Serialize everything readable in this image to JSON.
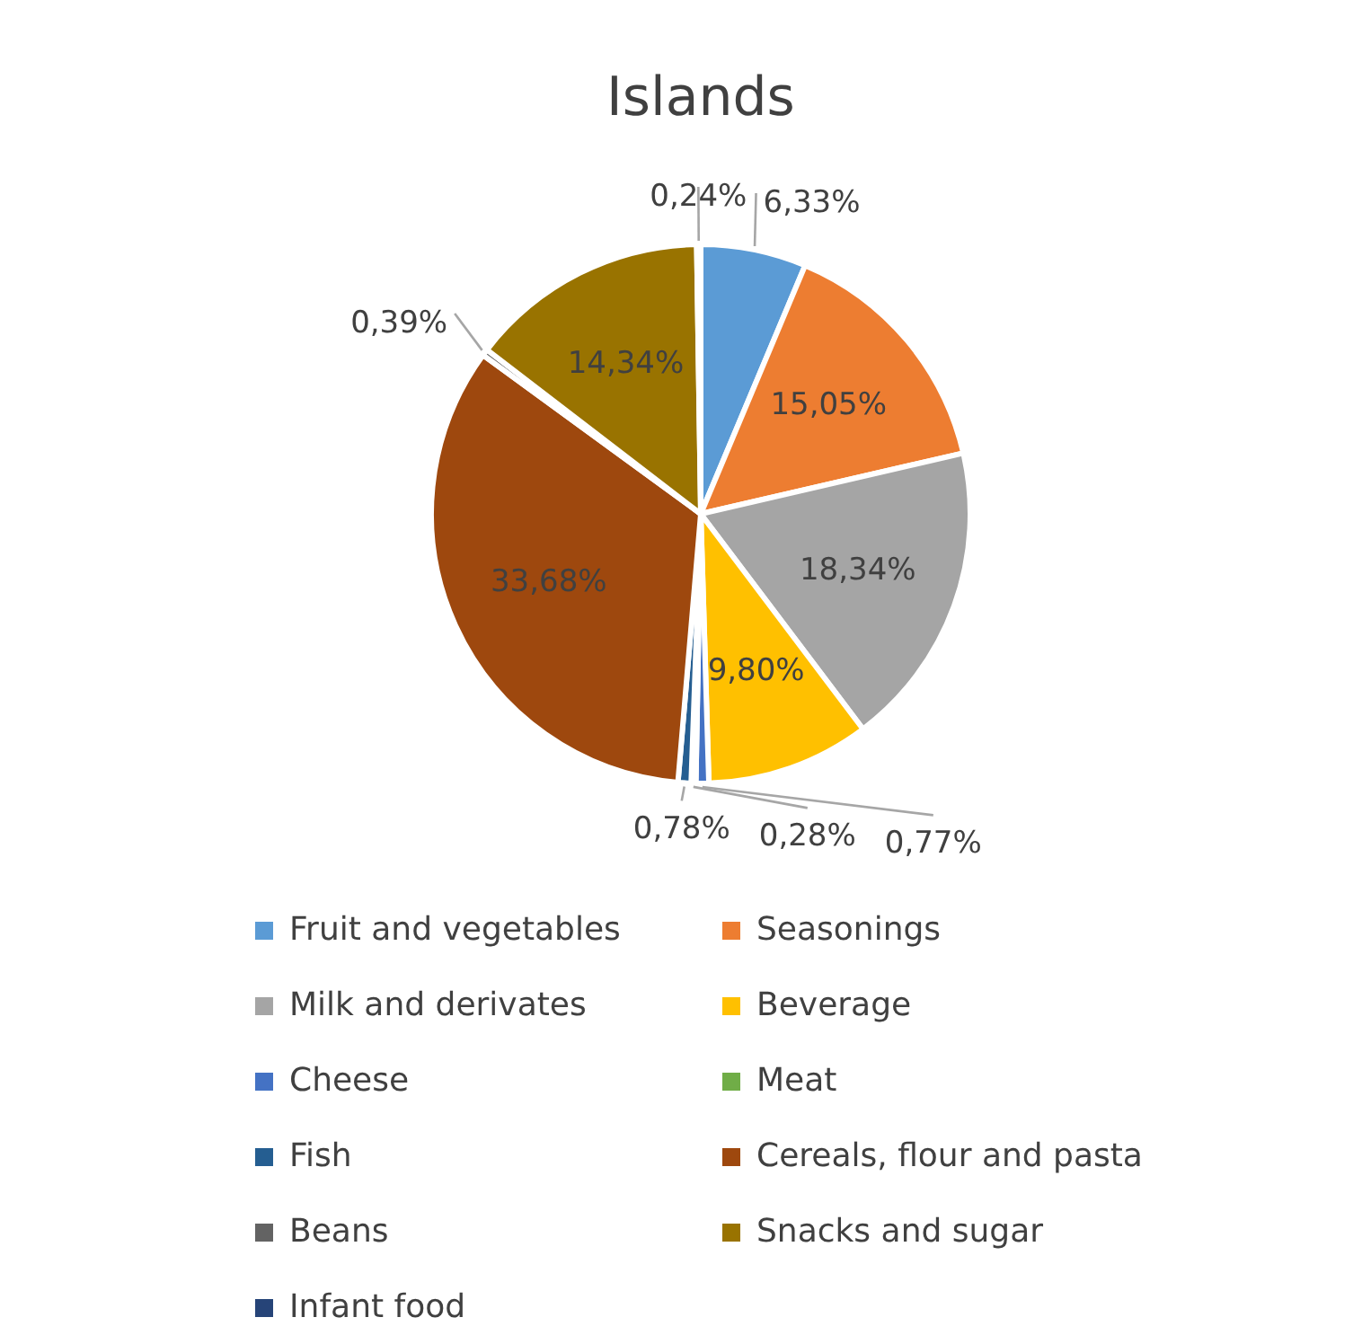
{
  "chart_data": {
    "type": "pie",
    "title": "Islands",
    "categories": [
      "Fruit and vegetables",
      "Seasonings",
      "Milk and derivates",
      "Beverage",
      "Cheese",
      "Meat",
      "Fish",
      "Cereals, flour and pasta",
      "Beans",
      "Snacks and sugar",
      "Infant food"
    ],
    "values": [
      6.33,
      15.05,
      18.34,
      9.8,
      0.77,
      0.28,
      0.78,
      33.68,
      0.39,
      14.34,
      0.24
    ],
    "value_labels": [
      "6,33%",
      "15,05%",
      "18,34%",
      "9,80%",
      "0,77%",
      "0,28%",
      "0,78%",
      "33,68%",
      "0,39%",
      "14,34%",
      "0,24%"
    ],
    "colors": [
      "#5b9bd5",
      "#ed7d31",
      "#a5a5a5",
      "#ffc000",
      "#4472c4",
      "#70ad47",
      "#255e91",
      "#9e480e",
      "#636363",
      "#997300",
      "#264478"
    ],
    "legend": "bottom"
  }
}
